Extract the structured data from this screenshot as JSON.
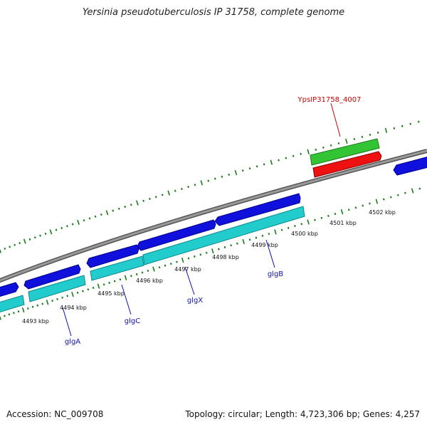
{
  "title": "Yersinia pseudotuberculosis IP 31758, complete genome",
  "footer": {
    "accession_label": "Accession: NC_009708",
    "topology": "Topology: circular;",
    "length": "Length: 4,723,306 bp;",
    "genes": "Genes: 4,257"
  },
  "colors": {
    "backbone": "#8a8a8a",
    "forward_gene": "#1010dd",
    "reverse_gene": "#20c8c8",
    "highlight_forward": "#30c030",
    "highlight_reverse": "#ee1010",
    "tick": "#1a7a1a",
    "gene_label": "#1010aa",
    "highlight_label": "#cc0000"
  },
  "scale_labels": [
    {
      "label": "4493 kbp"
    },
    {
      "label": "4494 kbp"
    },
    {
      "label": "4495 kbp"
    },
    {
      "label": "4496 kbp"
    },
    {
      "label": "4497 kbp"
    },
    {
      "label": "4498 kbp"
    },
    {
      "label": "4499 kbp"
    },
    {
      "label": "4500 kbp"
    },
    {
      "label": "4501 kbp"
    },
    {
      "label": "4502 kbp"
    }
  ],
  "gene_labels": [
    {
      "name": "glgA"
    },
    {
      "name": "glgC"
    },
    {
      "name": "glgX"
    },
    {
      "name": "glgB"
    }
  ],
  "highlight_label": "YpsIP31758_4007"
}
